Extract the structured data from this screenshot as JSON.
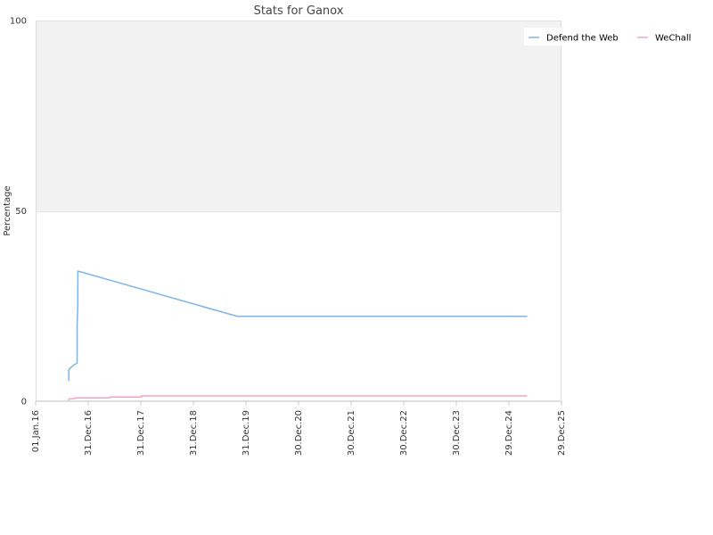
{
  "chart_data": {
    "type": "line",
    "title": "Stats for Ganox",
    "xlabel": "",
    "ylabel": "Percentage",
    "x_type": "date",
    "xlim": [
      "2016-01-01",
      "2025-12-29"
    ],
    "ylim": [
      0,
      100
    ],
    "x_ticks": [
      {
        "label": "01.Jan.16",
        "date": "2016-01-01"
      },
      {
        "label": "31.Dec.16",
        "date": "2016-12-31"
      },
      {
        "label": "31.Dec.17",
        "date": "2017-12-31"
      },
      {
        "label": "31.Dec.18",
        "date": "2018-12-31"
      },
      {
        "label": "31.Dec.19",
        "date": "2019-12-31"
      },
      {
        "label": "30.Dec.20",
        "date": "2020-12-30"
      },
      {
        "label": "30.Dec.21",
        "date": "2021-12-30"
      },
      {
        "label": "30.Dec.22",
        "date": "2022-12-30"
      },
      {
        "label": "30.Dec.23",
        "date": "2023-12-30"
      },
      {
        "label": "29.Dec.24",
        "date": "2024-12-29"
      },
      {
        "label": "29.Dec.25",
        "date": "2025-12-29"
      }
    ],
    "y_ticks": [
      0,
      50,
      100
    ],
    "plot_band": {
      "from": 50,
      "to": 100,
      "color": "#f2f2f2"
    },
    "grid": true,
    "legend_position": "top-right",
    "series": [
      {
        "name": "Defend the Web",
        "color": "#7cb5ec",
        "points": [
          {
            "x": "2016-08-18",
            "y": 5.5
          },
          {
            "x": "2016-08-18",
            "y": 8.3
          },
          {
            "x": "2016-09-20",
            "y": 9.5
          },
          {
            "x": "2016-10-15",
            "y": 10.0
          },
          {
            "x": "2016-10-15",
            "y": 20.0
          },
          {
            "x": "2016-10-20",
            "y": 25.0
          },
          {
            "x": "2016-10-20",
            "y": 34.2
          },
          {
            "x": "2019-11-01",
            "y": 22.3
          },
          {
            "x": "2025-05-01",
            "y": 22.3
          }
        ]
      },
      {
        "name": "WeChall",
        "color": "#f7a1c4",
        "points": [
          {
            "x": "2016-08-18",
            "y": 0.3
          },
          {
            "x": "2016-08-18",
            "y": 0.6
          },
          {
            "x": "2016-10-01",
            "y": 0.7
          },
          {
            "x": "2016-10-01",
            "y": 0.9
          },
          {
            "x": "2017-06-01",
            "y": 0.9
          },
          {
            "x": "2017-06-01",
            "y": 1.1
          },
          {
            "x": "2018-01-05",
            "y": 1.1
          },
          {
            "x": "2018-01-05",
            "y": 1.4
          },
          {
            "x": "2025-05-01",
            "y": 1.4
          }
        ]
      }
    ]
  }
}
